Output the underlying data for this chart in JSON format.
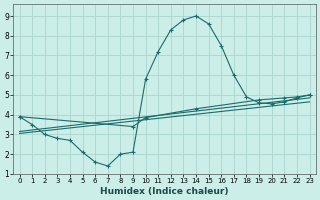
{
  "xlabel": "Humidex (Indice chaleur)",
  "bg_color": "#cceee8",
  "grid_color": "#aad4ce",
  "line_color": "#1a6b6b",
  "xlim": [
    -0.5,
    23.5
  ],
  "ylim": [
    1,
    9.6
  ],
  "yticks": [
    1,
    2,
    3,
    4,
    5,
    6,
    7,
    8,
    9
  ],
  "xticks": [
    0,
    1,
    2,
    3,
    4,
    5,
    6,
    7,
    8,
    9,
    10,
    11,
    12,
    13,
    14,
    15,
    16,
    17,
    18,
    19,
    20,
    21,
    22,
    23
  ],
  "line1_x": [
    0,
    1,
    2,
    3,
    4,
    5,
    6,
    7,
    8,
    9,
    10,
    11,
    12,
    13,
    14,
    15,
    16,
    17,
    18,
    19,
    20,
    21,
    22,
    23
  ],
  "line1_y": [
    3.9,
    3.5,
    3.0,
    2.8,
    2.7,
    2.1,
    1.6,
    1.4,
    2.0,
    2.1,
    5.8,
    7.2,
    8.3,
    8.8,
    9.0,
    8.6,
    7.5,
    6.0,
    4.9,
    4.6,
    4.55,
    4.65,
    4.85,
    5.0
  ],
  "line2_x": [
    0,
    9,
    10,
    14,
    19,
    21,
    22,
    23
  ],
  "line2_y": [
    3.9,
    3.4,
    3.85,
    4.3,
    4.75,
    4.85,
    4.9,
    5.0
  ],
  "line3_x": [
    0,
    23
  ],
  "line3_y": [
    3.15,
    4.85
  ],
  "line4_x": [
    0,
    23
  ],
  "line4_y": [
    3.05,
    4.65
  ]
}
